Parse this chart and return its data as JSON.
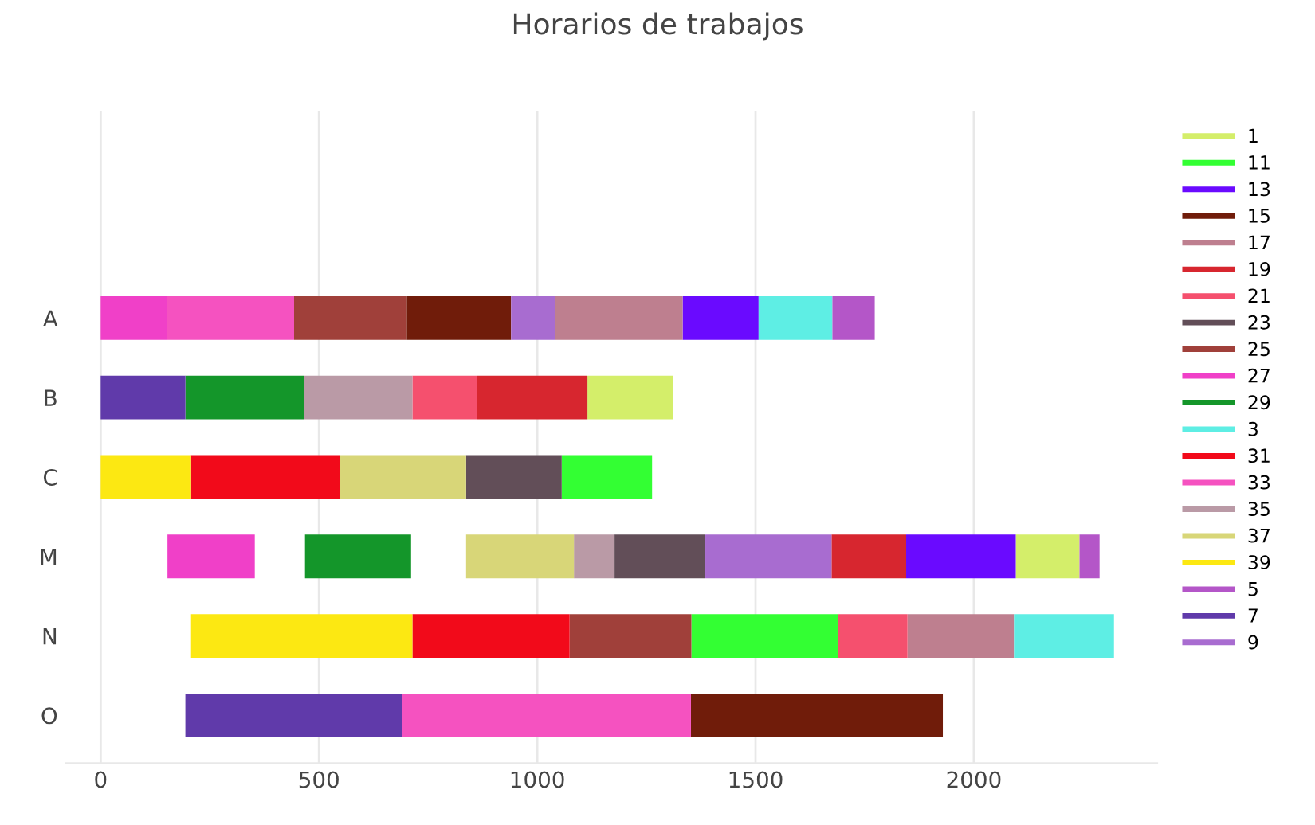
{
  "chart_data": {
    "type": "bar",
    "orientation": "horizontal",
    "title": "Horarios de trabajos",
    "categories": [
      null,
      null,
      "A",
      "B",
      "C",
      "M",
      "N",
      "O"
    ],
    "xlim": [
      -80,
      2420
    ],
    "xticks": [
      0,
      500,
      1000,
      1500,
      2000
    ],
    "grid": "x",
    "legend": "right",
    "series": [
      {
        "name": "1",
        "color": "#d4ee6a",
        "values": [
          null,
          null,
          null,
          196,
          null,
          146,
          null,
          null
        ],
        "base": [
          null,
          null,
          null,
          1115,
          null,
          2096,
          null,
          null
        ]
      },
      {
        "name": "11",
        "color": "#33ff33",
        "values": [
          null,
          null,
          null,
          null,
          207,
          null,
          336,
          null
        ],
        "base": [
          null,
          null,
          null,
          null,
          1056,
          null,
          1353,
          null
        ]
      },
      {
        "name": "13",
        "color": "#6a0aff",
        "values": [
          null,
          null,
          174,
          null,
          null,
          251,
          null,
          null
        ],
        "base": [
          null,
          null,
          1333,
          null,
          null,
          1845,
          null,
          null
        ]
      },
      {
        "name": "15",
        "color": "#701c0a",
        "values": [
          null,
          null,
          239,
          null,
          null,
          null,
          null,
          577
        ],
        "base": [
          null,
          null,
          701,
          null,
          null,
          null,
          null,
          1352
        ]
      },
      {
        "name": "17",
        "color": "#be7f8f",
        "values": [
          null,
          null,
          292,
          null,
          null,
          null,
          244,
          null
        ],
        "base": [
          null,
          null,
          1041,
          null,
          null,
          null,
          1848,
          null
        ]
      },
      {
        "name": "19",
        "color": "#d7262f",
        "values": [
          null,
          null,
          null,
          253,
          null,
          171,
          null,
          null
        ],
        "base": [
          null,
          null,
          null,
          862,
          null,
          1674,
          null,
          null
        ]
      },
      {
        "name": "21",
        "color": "#f5506e",
        "values": [
          null,
          null,
          null,
          148,
          null,
          null,
          159,
          null
        ],
        "base": [
          null,
          null,
          null,
          714,
          null,
          null,
          1689,
          null
        ]
      },
      {
        "name": "23",
        "color": "#624e58",
        "values": [
          null,
          null,
          null,
          null,
          219,
          208,
          null,
          null
        ],
        "base": [
          null,
          null,
          null,
          null,
          837,
          1177,
          null,
          null
        ]
      },
      {
        "name": "25",
        "color": "#a0403a",
        "values": [
          null,
          null,
          258,
          null,
          null,
          null,
          279,
          null
        ],
        "base": [
          null,
          null,
          443,
          null,
          null,
          null,
          1074,
          null
        ]
      },
      {
        "name": "27",
        "color": "#f040c8",
        "values": [
          null,
          null,
          152,
          null,
          null,
          200,
          null,
          null
        ],
        "base": [
          null,
          null,
          0,
          null,
          null,
          153,
          null,
          null
        ]
      },
      {
        "name": "29",
        "color": "#14962a",
        "values": [
          null,
          null,
          null,
          272,
          null,
          243,
          null,
          null
        ],
        "base": [
          null,
          null,
          null,
          194,
          null,
          468,
          null,
          null
        ]
      },
      {
        "name": "3",
        "color": "#5eeee4",
        "values": [
          null,
          null,
          169,
          null,
          null,
          null,
          229,
          null
        ],
        "base": [
          null,
          null,
          1507,
          null,
          null,
          null,
          2092,
          null
        ]
      },
      {
        "name": "31",
        "color": "#f20a1a",
        "values": [
          null,
          null,
          null,
          null,
          341,
          null,
          360,
          null
        ],
        "base": [
          null,
          null,
          null,
          null,
          207,
          null,
          714,
          null
        ]
      },
      {
        "name": "33",
        "color": "#f552c0",
        "values": [
          null,
          null,
          291,
          null,
          null,
          null,
          null,
          662
        ],
        "base": [
          null,
          null,
          152,
          null,
          null,
          null,
          null,
          690
        ]
      },
      {
        "name": "35",
        "color": "#ba9aa6",
        "values": [
          null,
          null,
          null,
          248,
          null,
          93,
          null,
          null
        ],
        "base": [
          null,
          null,
          null,
          466,
          null,
          1084,
          null,
          null
        ]
      },
      {
        "name": "37",
        "color": "#d8d678",
        "values": [
          null,
          null,
          null,
          null,
          289,
          247,
          null,
          null
        ],
        "base": [
          null,
          null,
          null,
          null,
          548,
          837,
          null,
          null
        ]
      },
      {
        "name": "39",
        "color": "#fce812",
        "values": [
          null,
          null,
          null,
          null,
          207,
          null,
          507,
          null
        ],
        "base": [
          null,
          null,
          null,
          null,
          0,
          null,
          207,
          null
        ]
      },
      {
        "name": "5",
        "color": "#b456c8",
        "values": [
          null,
          null,
          97,
          null,
          null,
          46,
          null,
          null
        ],
        "base": [
          null,
          null,
          1676,
          null,
          null,
          2242,
          null,
          null
        ]
      },
      {
        "name": "7",
        "color": "#603aaa",
        "values": [
          null,
          null,
          null,
          194,
          null,
          null,
          null,
          496
        ],
        "base": [
          null,
          null,
          null,
          0,
          null,
          null,
          null,
          194
        ]
      },
      {
        "name": "9",
        "color": "#a86cd0",
        "values": [
          null,
          null,
          101,
          null,
          null,
          289,
          null,
          null
        ],
        "base": [
          null,
          null,
          940,
          null,
          null,
          1385,
          null,
          null
        ]
      }
    ]
  }
}
